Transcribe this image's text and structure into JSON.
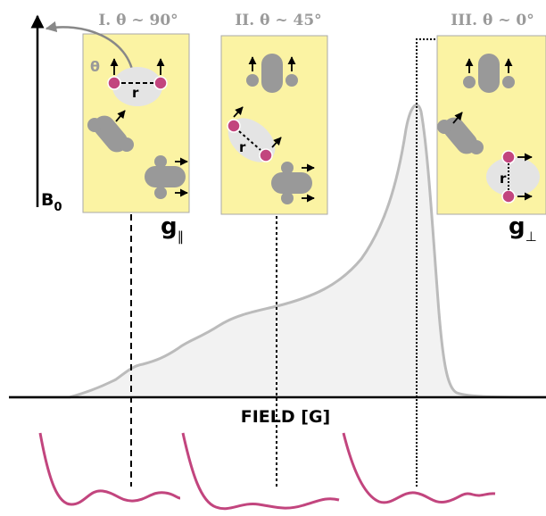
{
  "panels": [
    {
      "title": "I. θ ~ 90°",
      "angle_label": "θ",
      "distance_label": "r"
    },
    {
      "title": "II. θ ~ 45°",
      "distance_label": "r"
    },
    {
      "title": "III. θ ~ 0°",
      "distance_label": "r"
    }
  ],
  "axis": {
    "field_label": "FIELD [G]",
    "b_field": {
      "symbol": "B",
      "subscript": "0"
    }
  },
  "g_labels": [
    {
      "symbol": "g",
      "subscript": "∥"
    },
    {
      "symbol": "g",
      "subscript": "⊥"
    }
  ]
}
